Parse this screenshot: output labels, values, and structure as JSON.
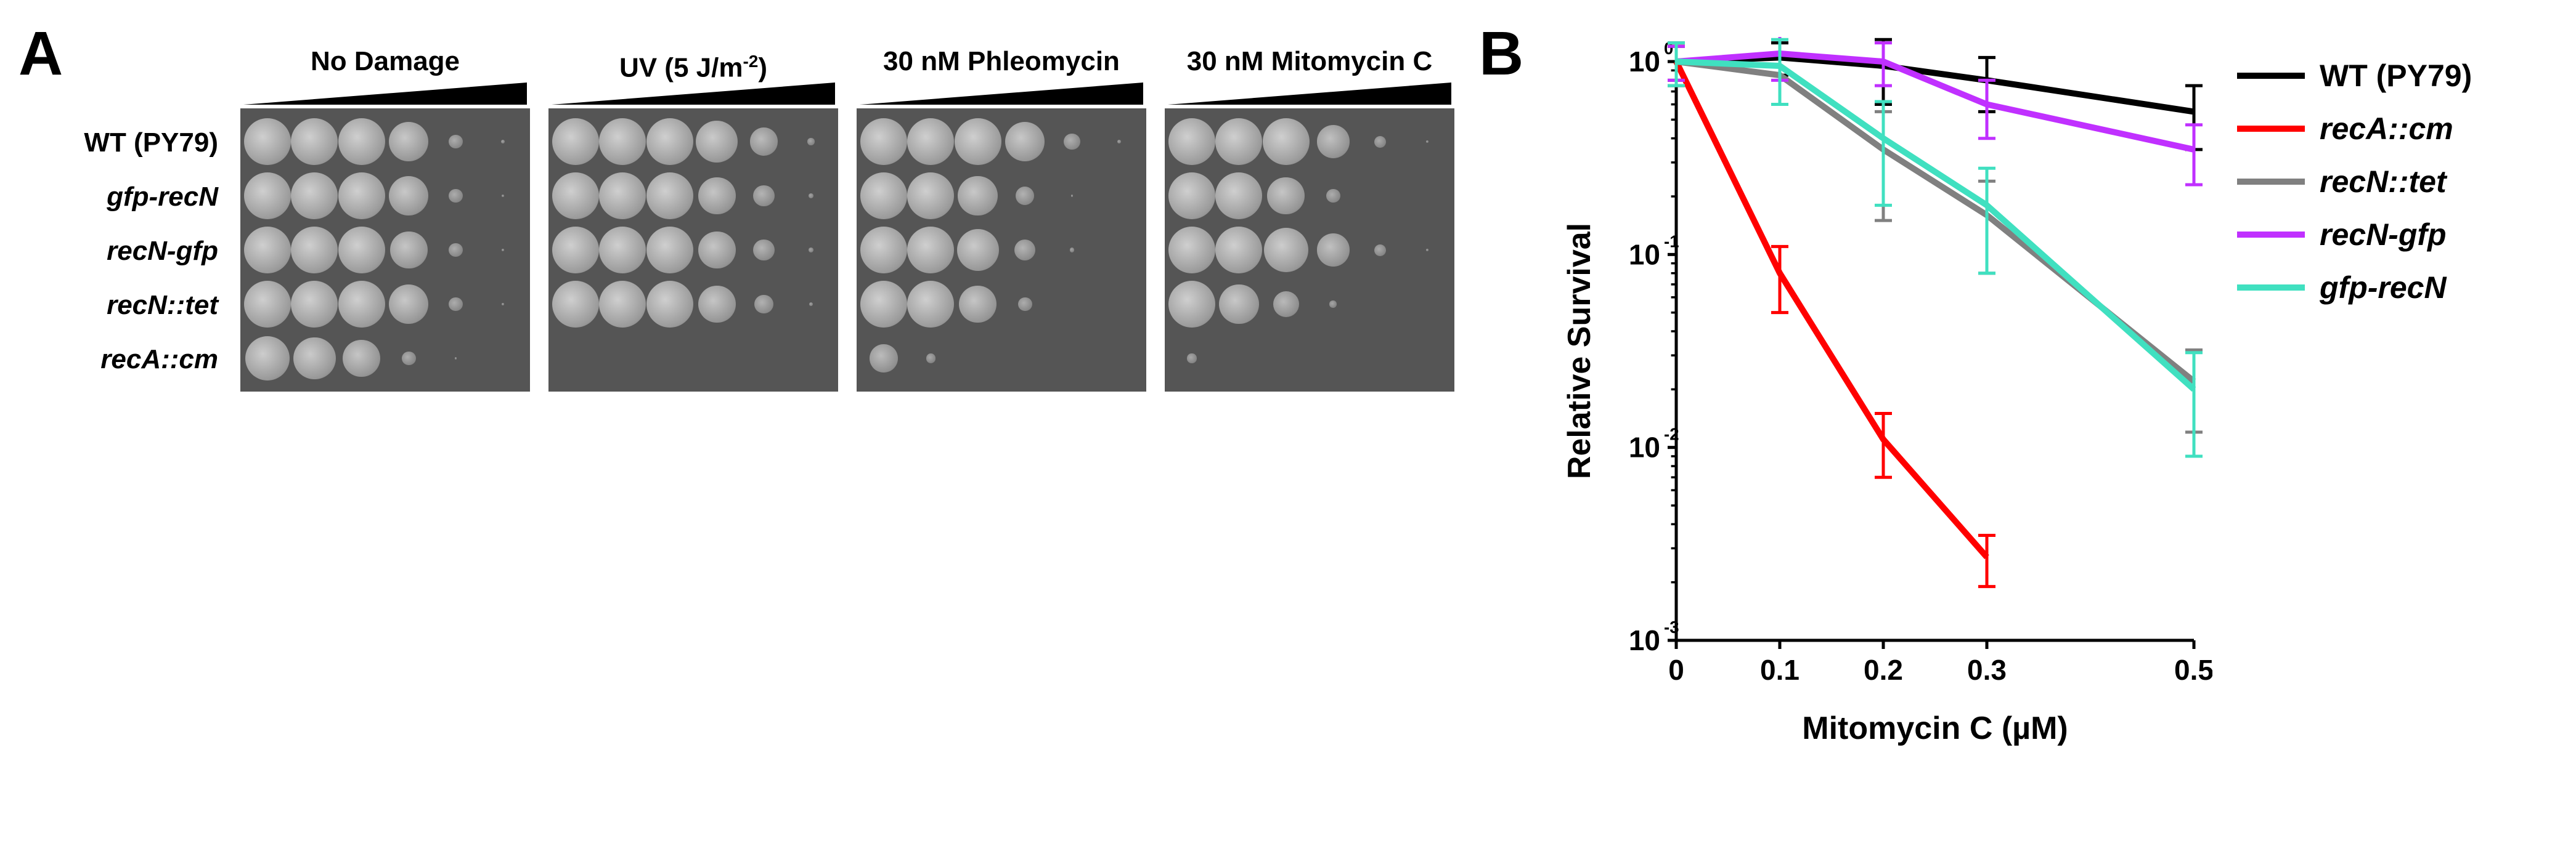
{
  "panelA": {
    "label": "A",
    "row_labels": [
      "WT (PY79)",
      "gfp-recN",
      "recN-gfp",
      "recN::tet",
      "recA::cm"
    ],
    "row_styles": [
      "wt",
      "it",
      "it",
      "it",
      "it"
    ],
    "treatments": [
      {
        "title_html": "No Damage",
        "growth": [
          [
            1.0,
            1.0,
            1.0,
            0.85,
            0.3,
            0.08
          ],
          [
            1.0,
            1.0,
            1.0,
            0.85,
            0.3,
            0.06
          ],
          [
            1.0,
            1.0,
            1.0,
            0.8,
            0.3,
            0.05
          ],
          [
            1.0,
            1.0,
            1.0,
            0.85,
            0.3,
            0.06
          ],
          [
            0.95,
            0.9,
            0.8,
            0.3,
            0.05,
            0.0
          ]
        ]
      },
      {
        "title_html": "UV (5 J/m<sup>-2</sup>)",
        "growth": [
          [
            1.0,
            1.0,
            1.0,
            0.9,
            0.6,
            0.15
          ],
          [
            1.0,
            1.0,
            1.0,
            0.8,
            0.45,
            0.1
          ],
          [
            1.0,
            1.0,
            1.0,
            0.8,
            0.45,
            0.1
          ],
          [
            1.0,
            1.0,
            1.0,
            0.8,
            0.4,
            0.08
          ],
          [
            0.0,
            0.0,
            0.0,
            0.0,
            0.0,
            0.0
          ]
        ]
      },
      {
        "title_html": "30 nM Phleomycin",
        "growth": [
          [
            1.0,
            1.0,
            1.0,
            0.85,
            0.35,
            0.08
          ],
          [
            1.0,
            1.0,
            0.85,
            0.4,
            0.05,
            0.0
          ],
          [
            1.0,
            1.0,
            0.9,
            0.45,
            0.1,
            0.0
          ],
          [
            1.0,
            1.0,
            0.8,
            0.3,
            0.0,
            0.0
          ],
          [
            0.6,
            0.2,
            0.0,
            0.0,
            0.0,
            0.0
          ]
        ]
      },
      {
        "title_html": "30 nM Mitomycin C",
        "growth": [
          [
            1.0,
            1.0,
            1.0,
            0.7,
            0.25,
            0.06
          ],
          [
            1.0,
            1.0,
            0.8,
            0.3,
            0.0,
            0.0
          ],
          [
            1.0,
            1.0,
            0.95,
            0.7,
            0.25,
            0.05
          ],
          [
            1.0,
            0.85,
            0.55,
            0.15,
            0.0,
            0.0
          ],
          [
            0.2,
            0.0,
            0.0,
            0.0,
            0.0,
            0.0
          ]
        ]
      }
    ],
    "spot_base_diameter": 76,
    "plate_bg": "#555555",
    "label_fontsize": 44
  },
  "panelB": {
    "label": "B",
    "chart": {
      "type": "line-log",
      "xlabel": "Mitomycin C (µM)",
      "ylabel": "Relative Survival",
      "x_ticks": [
        0,
        0.1,
        0.2,
        0.3,
        0.5
      ],
      "x_positions": [
        0,
        0.2,
        0.4,
        0.6,
        1.0
      ],
      "y_min_exp": -3,
      "y_max_exp": 0,
      "background_color": "#ffffff",
      "axis_color": "#000000",
      "axis_stroke": 5,
      "tick_len": 14,
      "line_stroke": 10,
      "err_stroke": 5,
      "label_fontsize": 52,
      "tick_fontsize": 46,
      "series": [
        {
          "name": "WT (PY79)",
          "color": "#000000",
          "style": "wt",
          "x": [
            0,
            0.1,
            0.2,
            0.3,
            0.5
          ],
          "y": [
            1.0,
            1.05,
            0.95,
            0.8,
            0.55
          ],
          "err": [
            0.2,
            0.2,
            0.35,
            0.25,
            0.2
          ]
        },
        {
          "name": "recA::cm",
          "color": "#ff0000",
          "style": "it",
          "x": [
            0,
            0.1,
            0.2,
            0.3
          ],
          "y": [
            1.0,
            0.08,
            0.011,
            0.0027
          ],
          "err": [
            0.25,
            0.03,
            0.004,
            0.0008
          ]
        },
        {
          "name": "recN::tet",
          "color": "#808080",
          "style": "it",
          "x": [
            0,
            0.1,
            0.2,
            0.3,
            0.5
          ],
          "y": [
            1.0,
            0.85,
            0.35,
            0.16,
            0.022
          ],
          "err": [
            0.25,
            0.25,
            0.2,
            0.08,
            0.01
          ]
        },
        {
          "name": "recN-gfp",
          "color": "#c030ff",
          "style": "it",
          "x": [
            0,
            0.1,
            0.2,
            0.3,
            0.5
          ],
          "y": [
            1.0,
            1.1,
            1.0,
            0.6,
            0.35
          ],
          "err": [
            0.2,
            0.3,
            0.25,
            0.2,
            0.12
          ]
        },
        {
          "name": "gfp-recN",
          "color": "#40e0c0",
          "style": "it",
          "x": [
            0,
            0.1,
            0.2,
            0.3,
            0.5
          ],
          "y": [
            1.0,
            0.95,
            0.4,
            0.18,
            0.02
          ],
          "err": [
            0.25,
            0.35,
            0.22,
            0.1,
            0.011
          ]
        }
      ]
    }
  }
}
